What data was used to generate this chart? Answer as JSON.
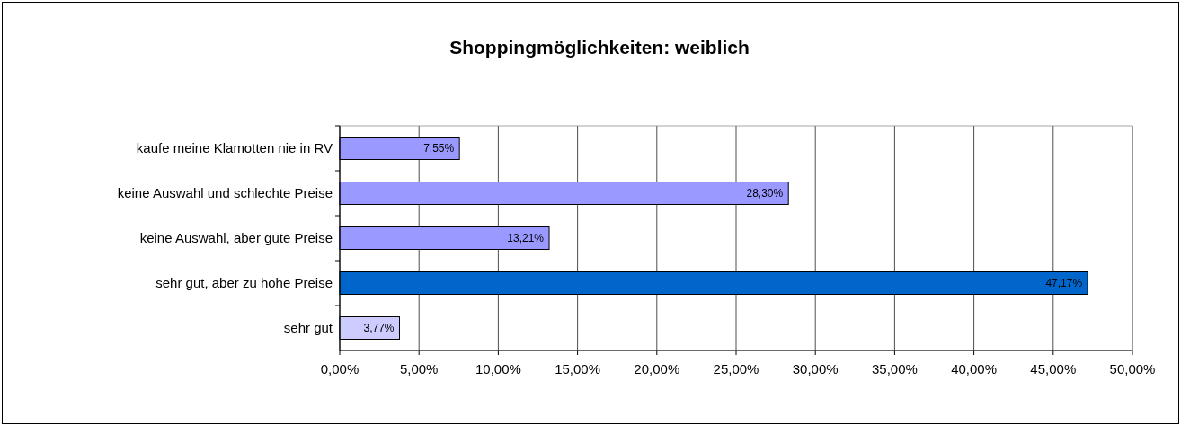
{
  "chart_data": {
    "type": "bar",
    "orientation": "horizontal",
    "title": "Shoppingmöglichkeiten: weiblich",
    "categories": [
      "kaufe meine Klamotten nie in RV",
      "keine Auswahl und schlechte Preise",
      "keine Auswahl, aber gute Preise",
      "sehr gut, aber zu hohe Preise",
      "sehr gut"
    ],
    "values": [
      7.55,
      28.3,
      13.21,
      47.17,
      3.77
    ],
    "colors": [
      "#9999ff",
      "#9999ff",
      "#9999ff",
      "#0066cc",
      "#ccccff"
    ],
    "value_labels": [
      "7,55%",
      "28,30%",
      "13,21%",
      "47,17%",
      "3,77%"
    ],
    "xlim": [
      0,
      50
    ],
    "xticks": [
      {
        "value": 0,
        "label": "0,00%"
      },
      {
        "value": 5,
        "label": "5,00%"
      },
      {
        "value": 10,
        "label": "10,00%"
      },
      {
        "value": 15,
        "label": "15,00%"
      },
      {
        "value": 20,
        "label": "20,00%"
      },
      {
        "value": 25,
        "label": "25,00%"
      },
      {
        "value": 30,
        "label": "30,00%"
      },
      {
        "value": 35,
        "label": "35,00%"
      },
      {
        "value": 40,
        "label": "40,00%"
      },
      {
        "value": 45,
        "label": "45,00%"
      },
      {
        "value": 50,
        "label": "50,00%"
      }
    ],
    "grid": "x"
  }
}
